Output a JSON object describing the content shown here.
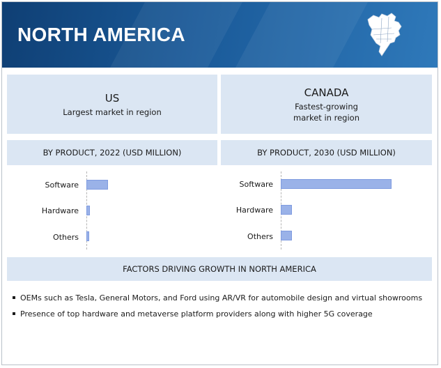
{
  "header": {
    "title": "NORTH AMERICA"
  },
  "left_panel": {
    "country": "US",
    "caption": "Largest market in region"
  },
  "right_panel": {
    "country": "CANADA",
    "caption_line1": "Fastest-growing",
    "caption_line2": "market in region"
  },
  "chart_data": [
    {
      "type": "bar",
      "orientation": "horizontal",
      "title": "BY PRODUCT, 2022 (USD MILLION)",
      "categories": [
        "Software",
        "Hardware",
        "Others"
      ],
      "values": [
        155,
        25,
        18
      ],
      "xlim": [
        0,
        800
      ],
      "grid": false,
      "value_labels_shown": false
    },
    {
      "type": "bar",
      "orientation": "horizontal",
      "title": "BY PRODUCT, 2030 (USD MILLION)",
      "categories": [
        "Software",
        "Hardware",
        "Others"
      ],
      "values": [
        785,
        80,
        80
      ],
      "xlim": [
        0,
        800
      ],
      "grid": false,
      "value_labels_shown": false
    }
  ],
  "factors": {
    "title": "FACTORS DRIVING GROWTH IN NORTH AMERICA",
    "items": [
      "OEMs such as Tesla, General Motors, and Ford using AR/VR for automobile design and virtual showrooms",
      "Presence of top hardware and metaverse platform providers along with higher 5G coverage"
    ]
  },
  "colors": {
    "header": "#1a5a99",
    "panel": "#dbe6f3",
    "bar": "#9ab2e8"
  },
  "icons": {
    "map": "north-america-map-icon"
  }
}
